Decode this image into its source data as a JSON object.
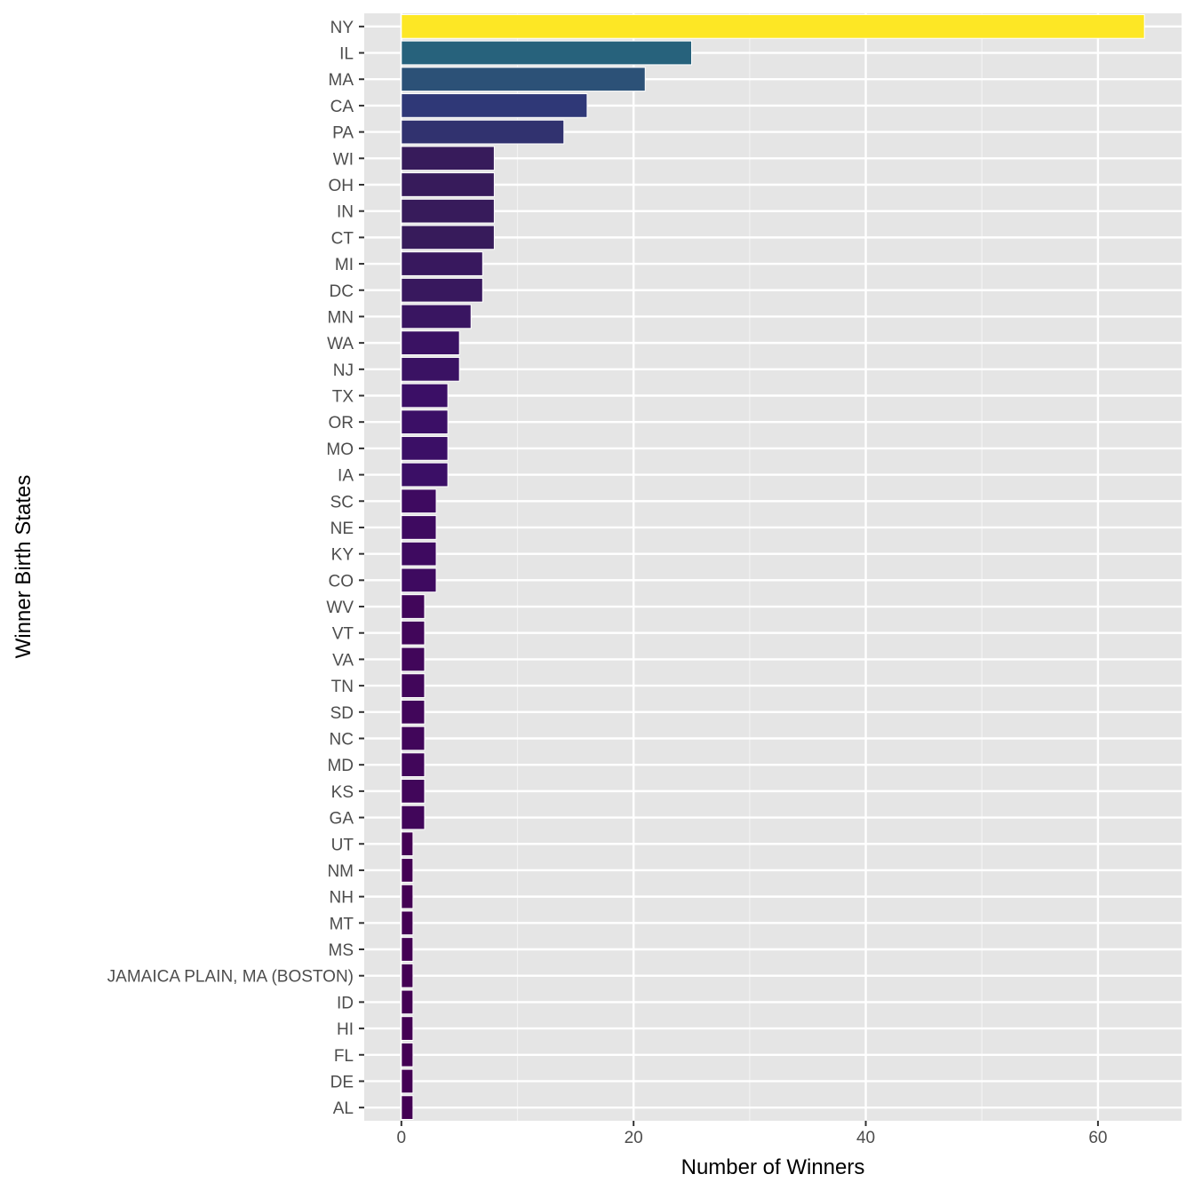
{
  "chart_data": {
    "type": "bar",
    "orientation": "horizontal",
    "xlabel": "Number of Winners",
    "ylabel": "Winner Birth States",
    "xlim": [
      -3.2,
      67.2
    ],
    "xticks": [
      0,
      20,
      40,
      60
    ],
    "grid": true,
    "legend": "none",
    "color_scale": "viridis (by value)",
    "color_stops": [
      [
        1,
        "#440154"
      ],
      [
        4,
        "#3b0f66"
      ],
      [
        8,
        "#371b5b"
      ],
      [
        14,
        "#31326f"
      ],
      [
        16,
        "#2f3877"
      ],
      [
        21,
        "#2c5177"
      ],
      [
        25,
        "#27627c"
      ],
      [
        64,
        "#fde725"
      ]
    ],
    "categories": [
      "NY",
      "IL",
      "MA",
      "CA",
      "PA",
      "WI",
      "OH",
      "IN",
      "CT",
      "MI",
      "DC",
      "MN",
      "WA",
      "NJ",
      "TX",
      "OR",
      "MO",
      "IA",
      "SC",
      "NE",
      "KY",
      "CO",
      "WV",
      "VT",
      "VA",
      "TN",
      "SD",
      "NC",
      "MD",
      "KS",
      "GA",
      "UT",
      "NM",
      "NH",
      "MT",
      "MS",
      "JAMAICA PLAIN, MA (BOSTON)",
      "ID",
      "HI",
      "FL",
      "DE",
      "AL"
    ],
    "values": [
      64,
      25,
      21,
      16,
      14,
      8,
      8,
      8,
      8,
      7,
      7,
      6,
      5,
      5,
      4,
      4,
      4,
      4,
      3,
      3,
      3,
      3,
      2,
      2,
      2,
      2,
      2,
      2,
      2,
      2,
      2,
      1,
      1,
      1,
      1,
      1,
      1,
      1,
      1,
      1,
      1,
      1
    ]
  }
}
